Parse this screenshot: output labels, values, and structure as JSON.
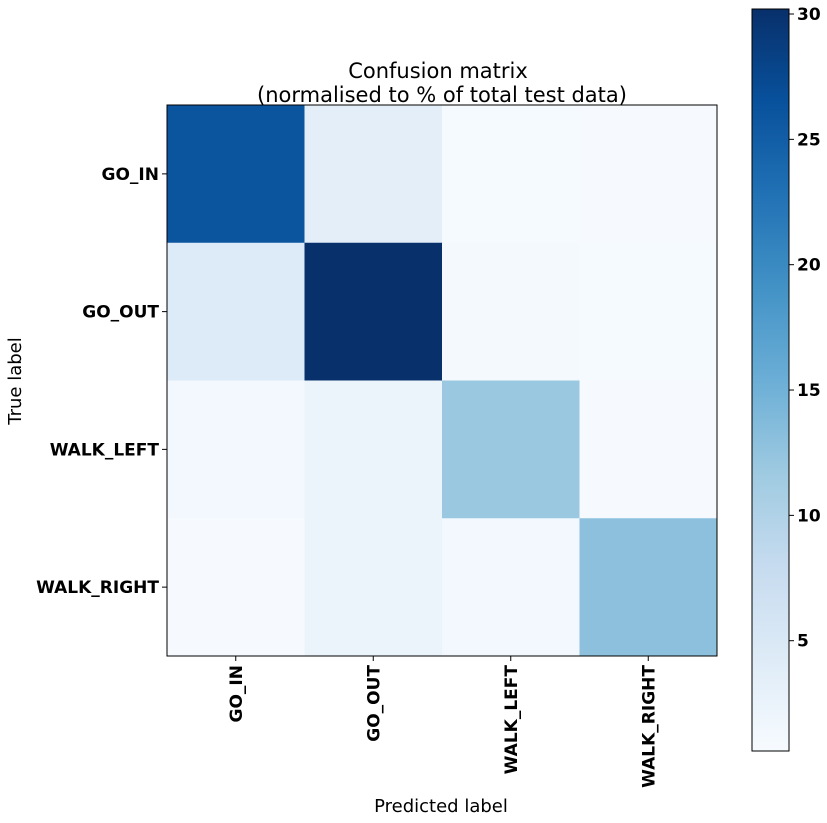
{
  "chart_data": {
    "type": "heatmap",
    "title": "Confusion matrix",
    "subtitle": "(normalised to % of total test data)",
    "xlabel": "Predicted label",
    "ylabel": "True label",
    "x_categories": [
      "GO_IN",
      "GO_OUT",
      "WALK_LEFT",
      "WALK_RIGHT"
    ],
    "y_categories": [
      "GO_IN",
      "GO_OUT",
      "WALK_LEFT",
      "WALK_RIGHT"
    ],
    "values": [
      [
        26.0,
        3.5,
        0.9,
        0.8
      ],
      [
        4.5,
        30.2,
        1.1,
        0.9
      ],
      [
        1.2,
        2.3,
        12.0,
        0.8
      ],
      [
        0.8,
        2.3,
        1.3,
        13.0
      ]
    ],
    "colormap": "Blues",
    "colorbar": {
      "min": 0.6,
      "max": 30.2,
      "ticks": [
        5,
        10,
        15,
        20,
        25,
        30
      ]
    }
  }
}
